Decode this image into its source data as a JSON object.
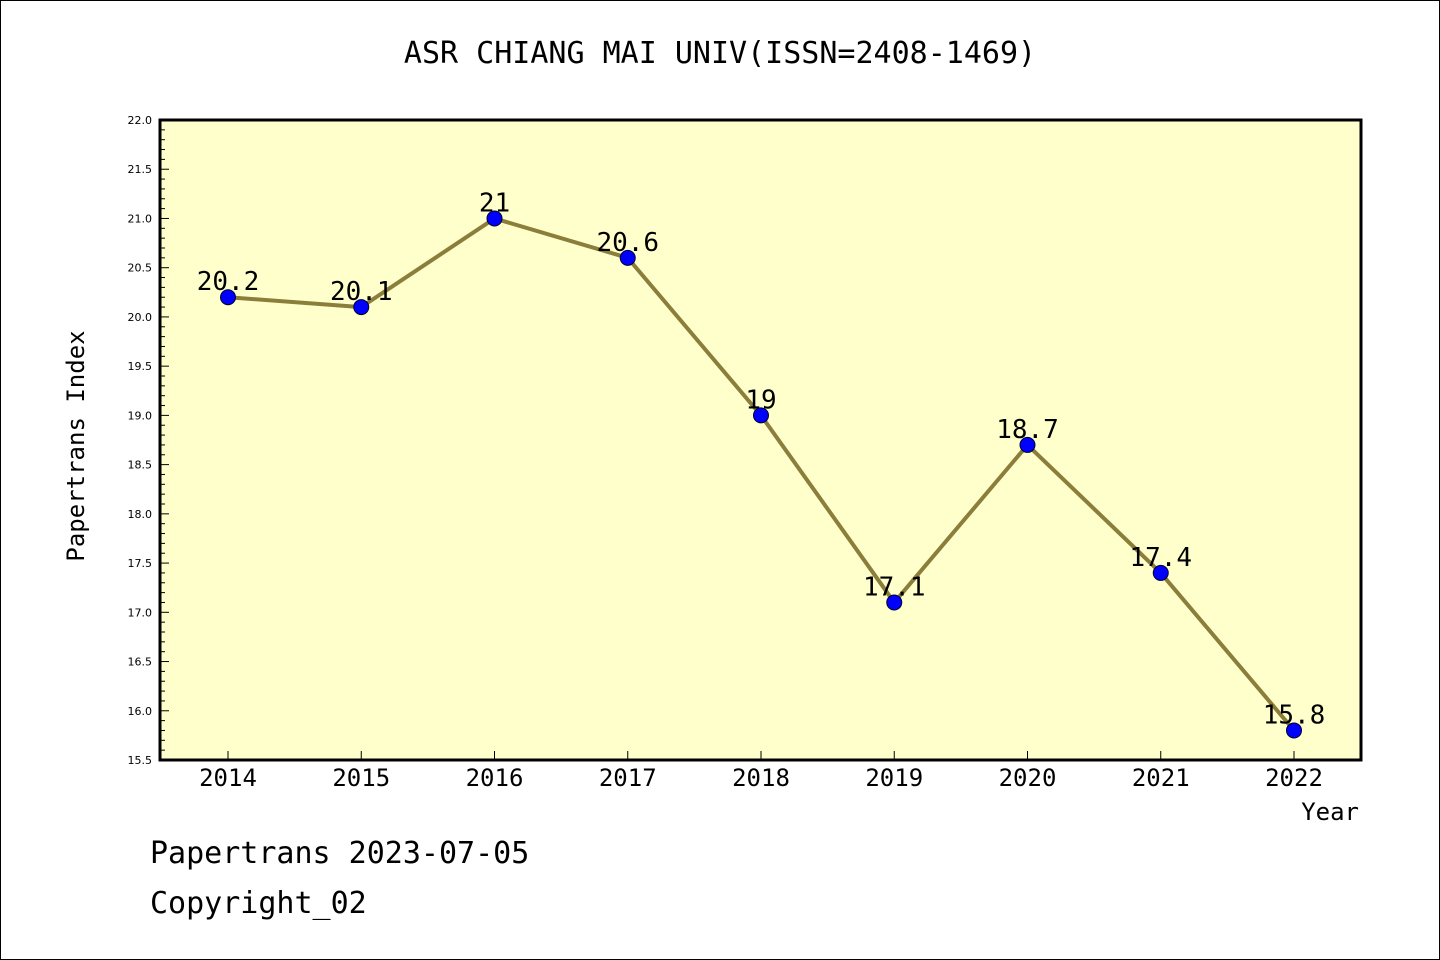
{
  "chart_data": {
    "type": "line",
    "title": "ASR CHIANG MAI UNIV(ISSN=2408-1469)",
    "xlabel": "Year",
    "ylabel": "Papertrans Index",
    "x": [
      "2014",
      "2015",
      "2016",
      "2017",
      "2018",
      "2019",
      "2020",
      "2021",
      "2022"
    ],
    "values": [
      20.2,
      20.1,
      21,
      20.6,
      19,
      17.1,
      18.7,
      17.4,
      15.8
    ],
    "data_labels": [
      "20.2",
      "20.1",
      "21",
      "20.6",
      "19",
      "17.1",
      "18.7",
      "17.4",
      "15.8"
    ],
    "ylim": [
      15.5,
      22.0
    ],
    "yticks": [
      "15.5",
      "16.0",
      "16.5",
      "17.0",
      "17.5",
      "18.0",
      "18.5",
      "19.0",
      "19.5",
      "20.0",
      "20.5",
      "21.0",
      "21.5",
      "22.0"
    ],
    "grid": false,
    "colors": {
      "plot_background": "#ffffcc",
      "line": "#8b7d3a",
      "marker": "#0000ff"
    }
  },
  "footer": {
    "line1": "Papertrans 2023-07-05",
    "line2": "Copyright_02"
  }
}
